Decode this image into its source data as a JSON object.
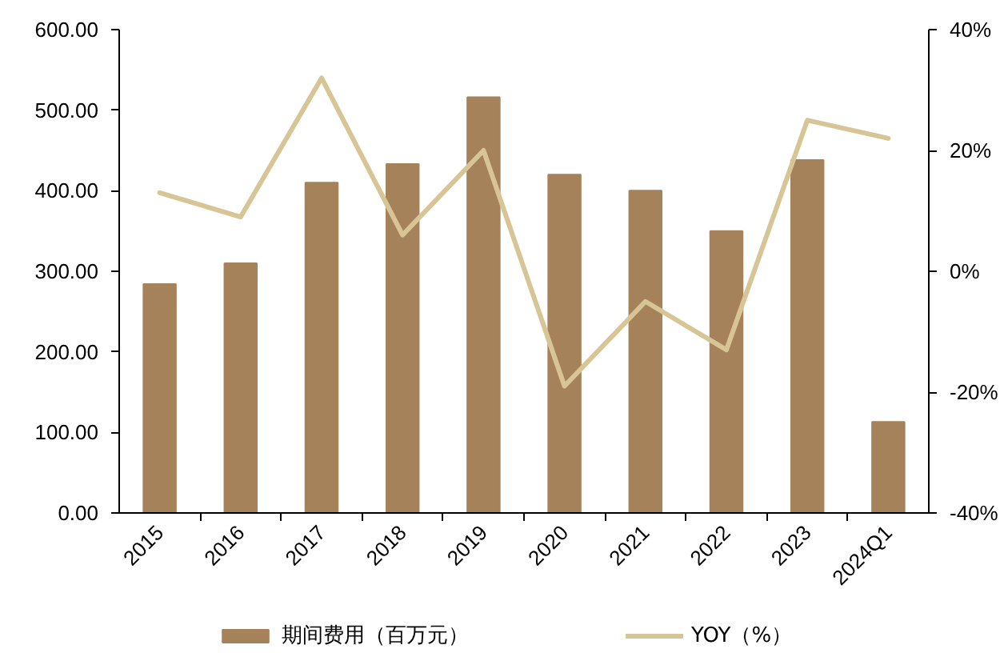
{
  "chart_data": {
    "type": "bar",
    "categories": [
      "2015",
      "2016",
      "2017",
      "2018",
      "2019",
      "2020",
      "2021",
      "2022",
      "2023",
      "2024Q1"
    ],
    "series": [
      {
        "name": "期间费用（百万元）",
        "color": "#a6825b",
        "values": [
          284,
          310,
          410,
          433,
          516,
          420,
          400,
          350,
          438,
          113
        ]
      },
      {
        "name": "YOY（%）",
        "type": "line",
        "axis": "y2",
        "color": "#d8c596",
        "values": [
          13,
          9,
          32,
          6,
          20,
          -19,
          -5,
          -13,
          25,
          22
        ]
      }
    ],
    "ylim": [
      0,
      600
    ],
    "yticks": [
      {
        "value": 0,
        "label": "0.00"
      },
      {
        "value": 100,
        "label": "100.00"
      },
      {
        "value": 200,
        "label": "200.00"
      },
      {
        "value": 300,
        "label": "300.00"
      },
      {
        "value": 400,
        "label": "400.00"
      },
      {
        "value": 500,
        "label": "500.00"
      },
      {
        "value": 600,
        "label": "600.00"
      }
    ],
    "y2lim": [
      -40,
      40
    ],
    "y2ticks": [
      {
        "value": -40,
        "label": "-40%"
      },
      {
        "value": -20,
        "label": "-20%"
      },
      {
        "value": 0,
        "label": "0%"
      },
      {
        "value": 20,
        "label": "20%"
      },
      {
        "value": 40,
        "label": "40%"
      }
    ],
    "grid": false,
    "legend": "bottom",
    "marker": "none",
    "line_style": "solid"
  }
}
